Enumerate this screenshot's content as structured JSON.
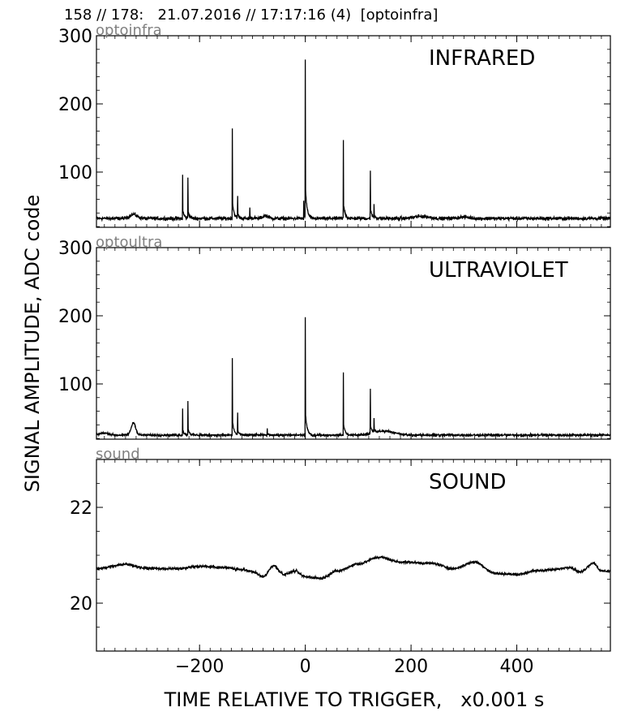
{
  "header": "158 // 178:   21.07.2016 // 17:17:16 (4)  [optoinfra]",
  "ylabel": "SIGNAL AMPLITUDE,  ADC code",
  "xlabel": "TIME RELATIVE TO TRIGGER,   x0.001 s",
  "chart_data": [
    {
      "type": "line",
      "title": "INFRARED",
      "channel_label": "optoinfra",
      "xlim": [
        -395,
        577
      ],
      "ylim": [
        19,
        300
      ],
      "x_ticks": [
        "−200",
        "0",
        "200",
        "400"
      ],
      "y_ticks": [
        100,
        200,
        300
      ],
      "y_tick_labels": [
        "100",
        "200",
        "300"
      ],
      "show_x_tick_labels": false,
      "baseline": 32,
      "noise": 2.5,
      "bumps": [
        {
          "x": -325,
          "h": 6,
          "w": 10
        },
        {
          "x": -75,
          "h": 4,
          "w": 8
        },
        {
          "x": 220,
          "h": 3,
          "w": 20
        },
        {
          "x": 300,
          "h": 2,
          "w": 15
        }
      ],
      "spikes": [
        {
          "x": -232,
          "y": 96
        },
        {
          "x": -222,
          "y": 92
        },
        {
          "x": -138,
          "y": 164
        },
        {
          "x": -128,
          "y": 65
        },
        {
          "x": -105,
          "y": 48
        },
        {
          "x": -3,
          "y": 58
        },
        {
          "x": 0,
          "y": 265
        },
        {
          "x": 72,
          "y": 147
        },
        {
          "x": 123,
          "y": 102
        },
        {
          "x": 130,
          "y": 53
        }
      ]
    },
    {
      "type": "line",
      "title": "ULTRAVIOLET",
      "channel_label": "optoultra",
      "xlim": [
        -395,
        577
      ],
      "ylim": [
        19,
        300
      ],
      "x_ticks": [
        "−200",
        "0",
        "200",
        "400"
      ],
      "y_ticks": [
        100,
        200,
        300
      ],
      "y_tick_labels": [
        "100",
        "200",
        "300"
      ],
      "show_x_tick_labels": false,
      "baseline": 25,
      "noise": 1.5,
      "bumps": [
        {
          "x": -325,
          "h": 18,
          "w": 6
        },
        {
          "x": -380,
          "h": 3,
          "w": 12
        },
        {
          "x": 150,
          "h": 6,
          "w": 25
        }
      ],
      "spikes": [
        {
          "x": -232,
          "y": 64
        },
        {
          "x": -222,
          "y": 75
        },
        {
          "x": -138,
          "y": 138
        },
        {
          "x": -128,
          "y": 58
        },
        {
          "x": -72,
          "y": 35
        },
        {
          "x": 0,
          "y": 198
        },
        {
          "x": 72,
          "y": 117
        },
        {
          "x": 123,
          "y": 93
        },
        {
          "x": 130,
          "y": 50
        }
      ]
    },
    {
      "type": "line",
      "title": "SOUND",
      "channel_label": "sound",
      "xlim": [
        -395,
        577
      ],
      "ylim": [
        19,
        23
      ],
      "x_ticks": [
        "−200",
        "0",
        "200",
        "400"
      ],
      "y_ticks": [
        20,
        22
      ],
      "y_tick_labels": [
        "20",
        "22"
      ],
      "show_x_tick_labels": true,
      "noise": 0.025,
      "knots": [
        [
          -395,
          20.72
        ],
        [
          -340,
          20.81
        ],
        [
          -300,
          20.73
        ],
        [
          -270,
          20.72
        ],
        [
          -240,
          20.72
        ],
        [
          -200,
          20.77
        ],
        [
          -150,
          20.74
        ],
        [
          -120,
          20.7
        ],
        [
          -100,
          20.66
        ],
        [
          -80,
          20.55
        ],
        [
          -60,
          20.78
        ],
        [
          -40,
          20.6
        ],
        [
          -20,
          20.67
        ],
        [
          0,
          20.55
        ],
        [
          30,
          20.52
        ],
        [
          60,
          20.67
        ],
        [
          100,
          20.82
        ],
        [
          140,
          20.96
        ],
        [
          180,
          20.86
        ],
        [
          240,
          20.83
        ],
        [
          280,
          20.72
        ],
        [
          320,
          20.86
        ],
        [
          360,
          20.62
        ],
        [
          400,
          20.6
        ],
        [
          440,
          20.68
        ],
        [
          470,
          20.7
        ],
        [
          500,
          20.75
        ],
        [
          520,
          20.65
        ],
        [
          545,
          20.84
        ],
        [
          560,
          20.67
        ],
        [
          577,
          20.67
        ]
      ]
    }
  ]
}
